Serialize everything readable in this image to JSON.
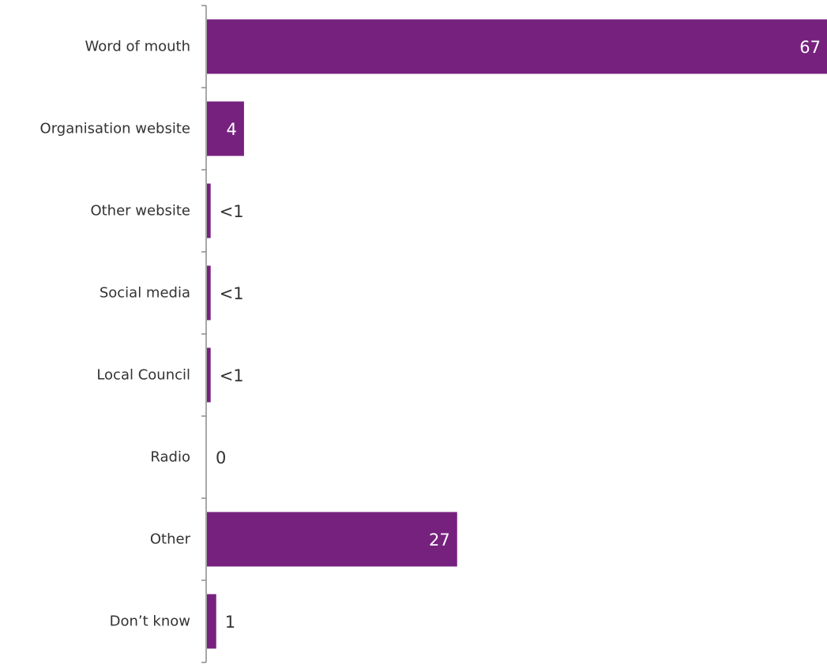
{
  "colors": {
    "bar": "#77217f",
    "axis": "#8c8c8c",
    "label_inside": "#ffffff",
    "label_outside": "#333333"
  },
  "chart_data": {
    "type": "bar",
    "orientation": "horizontal",
    "categories": [
      "Word of mouth",
      "Organisation website",
      "Other website",
      "Social media",
      "Local Council",
      "Radio",
      "Other",
      "Don’t know"
    ],
    "values": [
      67,
      4,
      0.4,
      0.4,
      0.4,
      0,
      27,
      1
    ],
    "value_labels": [
      "67",
      "4",
      "<1",
      "<1",
      "<1",
      "0",
      "27",
      "1"
    ],
    "xlim": [
      0,
      67
    ],
    "title": "",
    "xlabel": "",
    "ylabel": "",
    "grid": false,
    "legend": "none"
  }
}
